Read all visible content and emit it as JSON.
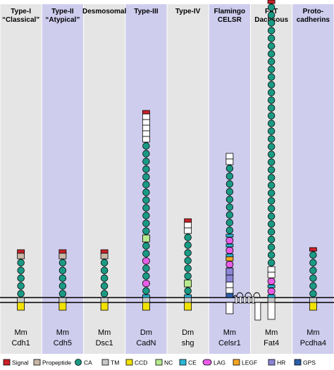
{
  "figure": {
    "columns": [
      {
        "head": [
          "Type-I",
          "“Classical”"
        ],
        "species": "Mm",
        "protein": "Cdh1",
        "domains": [
          "signal",
          "propeptide",
          "CA",
          "CA",
          "CA",
          "CA",
          "CA",
          "TM",
          "CCD"
        ]
      },
      {
        "head": [
          "Type-II",
          "“Atypical”"
        ],
        "species": "Mm",
        "protein": "Cdh5",
        "domains": [
          "signal",
          "propeptide",
          "CA",
          "CA",
          "CA",
          "CA",
          "CA",
          "TM",
          "CCD"
        ]
      },
      {
        "head": [
          "Desmosomal"
        ],
        "species": "Mm",
        "protein": "Dsc1",
        "domains": [
          "signal",
          "propeptide",
          "CA",
          "CA",
          "CA",
          "CA",
          "CA",
          "TM",
          "CCD"
        ]
      },
      {
        "head": [
          "Type-III"
        ],
        "species": "Dm",
        "protein": "CadN",
        "domains": [
          "signal",
          "propeptide",
          "propeptide",
          "propeptide",
          "propeptide",
          "propeptide",
          "CA",
          "CA",
          "CA",
          "CA",
          "CA",
          "CA",
          "CA",
          "CA",
          "CA",
          "CA",
          "CA",
          "CA",
          "NC",
          "CA",
          "CA",
          "LAG",
          "CA",
          "CA",
          "LAG",
          "CA",
          "CE",
          "TM",
          "CCD"
        ]
      },
      {
        "head": [
          "Type-IV"
        ],
        "species": "Dm",
        "protein": "shg",
        "domains": [
          "signal",
          "propeptide",
          "propeptide",
          "CA",
          "CA",
          "CA",
          "CA",
          "CA",
          "CA",
          "NC",
          "CA",
          "CE",
          "TM",
          "CCD"
        ]
      },
      {
        "head": [
          "Flamingo",
          "CELSR"
        ],
        "species": "Mm",
        "protein": "Celsr1",
        "domains": [
          "propeptide",
          "propeptide",
          "CA",
          "CA",
          "CA",
          "CA",
          "CA",
          "CA",
          "CA",
          "CA",
          "CA",
          "CE",
          "LAG",
          "CE",
          "LAG",
          "CE",
          "LEGF",
          "LAG",
          "HR",
          "HR",
          "propeptide",
          "propeptide",
          "GPS",
          "TM7",
          "HR"
        ]
      },
      {
        "head": [
          "FAT",
          "Dachsous"
        ],
        "species": "Mm",
        "protein": "Fat4",
        "domains": [
          "signal",
          "CA",
          "CA",
          "CA",
          "CA",
          "CA",
          "CA",
          "CA",
          "CA",
          "CA",
          "CA",
          "CA",
          "CA",
          "CA",
          "CA",
          "CA",
          "CA",
          "CA",
          "CA",
          "CA",
          "CA",
          "CA",
          "CA",
          "CA",
          "CA",
          "CA",
          "CA",
          "CA",
          "CA",
          "CA",
          "CA",
          "CA",
          "CA",
          "CA",
          "CA",
          "propeptide",
          "propeptide",
          "LAG",
          "CE",
          "LAG",
          "CE",
          "TM",
          "HR"
        ]
      },
      {
        "head": [
          "Proto-",
          "cadherins"
        ],
        "species": "Mm",
        "protein": "Pcdha4",
        "domains": [
          "signal",
          "CA",
          "CA",
          "CA",
          "CA",
          "CA",
          "CA",
          "TM",
          "CCD"
        ]
      }
    ],
    "legend": [
      {
        "key": "signal",
        "label": "Signal",
        "shape": "rect",
        "color": "#cc2229"
      },
      {
        "key": "propeptide",
        "label": "Propeptide",
        "shape": "rect",
        "color": "#c8b6a6"
      },
      {
        "key": "CA",
        "label": "CA",
        "shape": "circle",
        "color": "#1a9a84"
      },
      {
        "key": "TM",
        "label": "TM",
        "shape": "rect",
        "color": "#c9c9c9"
      },
      {
        "key": "CCD",
        "label": "CCD",
        "shape": "rect",
        "color": "#f2e200"
      },
      {
        "key": "NC",
        "label": "NC",
        "shape": "rect",
        "color": "#b7ea8f"
      },
      {
        "key": "CE",
        "label": "CE",
        "shape": "rect",
        "color": "#2db6d4"
      },
      {
        "key": "LAG",
        "label": "LAG",
        "shape": "pill",
        "color": "#e85ce6"
      },
      {
        "key": "LEGF",
        "label": "LEGF",
        "shape": "rect",
        "color": "#f5a623"
      },
      {
        "key": "HR",
        "label": "HR",
        "shape": "rect",
        "color": "#8d86d6"
      },
      {
        "key": "GPS",
        "label": "GPS",
        "shape": "rect",
        "color": "#2a5fa8"
      }
    ],
    "colors": {
      "band_grey": "#e5e5e5",
      "band_purple": "#cfcdee",
      "outline": "#000000"
    }
  }
}
